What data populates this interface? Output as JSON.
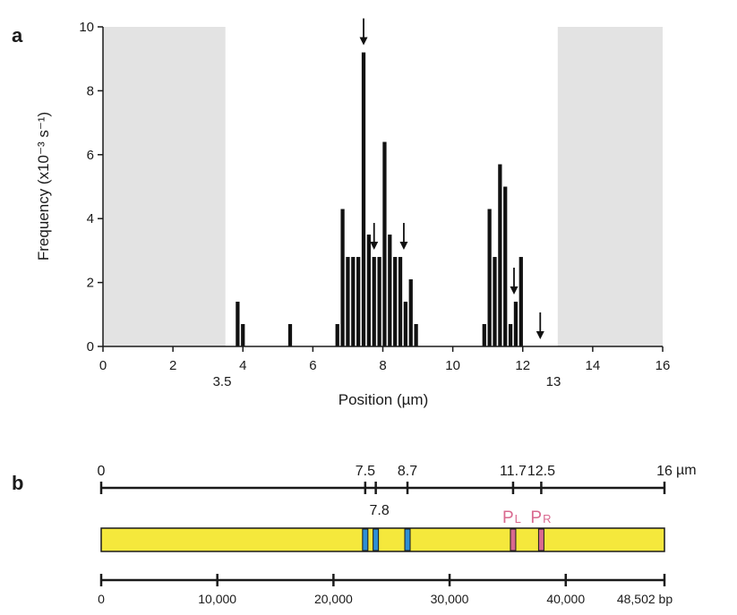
{
  "panel_a": {
    "letter": "a",
    "extra_x_labels": [
      "3.5",
      "13"
    ]
  },
  "panel_b": {
    "letter": "b",
    "um_positions": [
      0,
      7.5,
      7.8,
      8.7,
      11.7,
      12.5,
      16
    ],
    "um_labels": [
      "0",
      "7.5",
      "7.8",
      "8.7",
      "11.7",
      "12.5",
      "16"
    ],
    "um_unit": "µm",
    "bp_positions": [
      0,
      10000,
      20000,
      30000,
      40000,
      48502
    ],
    "bp_labels": [
      "0",
      "10,000",
      "20,000",
      "30,000",
      "40,000",
      "48,502 bp"
    ],
    "blue_marks_um": [
      7.5,
      7.8,
      8.7
    ],
    "pink_marks_um": [
      11.7,
      12.5
    ],
    "promoters": [
      {
        "main": "P",
        "sub": "L",
        "um": 11.7
      },
      {
        "main": "P",
        "sub": "R",
        "um": 12.5
      }
    ],
    "colors": {
      "dna": "#f5e83c",
      "blue": "#2f8fd4",
      "pink": "#d9698f"
    }
  },
  "chart_data": {
    "type": "bar",
    "xlabel": "Position (µm)",
    "ylabel": "Frequency (x10⁻³ s⁻¹)",
    "xlim": [
      0,
      16
    ],
    "ylim": [
      0,
      10
    ],
    "xticks": [
      0,
      2,
      4,
      6,
      8,
      10,
      12,
      14,
      16
    ],
    "yticks": [
      0,
      2,
      4,
      6,
      8,
      10
    ],
    "bin_width": 0.15,
    "x": [
      3.85,
      4.0,
      4.15,
      5.35,
      6.7,
      6.85,
      7.0,
      7.15,
      7.3,
      7.45,
      7.6,
      7.75,
      7.9,
      8.05,
      8.2,
      8.35,
      8.5,
      8.65,
      8.8,
      8.95,
      9.1,
      9.25,
      9.4,
      9.55,
      9.7,
      9.85,
      10.9,
      11.05,
      11.2,
      11.35,
      11.5,
      11.65,
      11.8,
      11.95,
      12.1,
      12.25,
      12.4,
      12.55
    ],
    "values": [
      1.4,
      0.7,
      0.0,
      0.7,
      0.7,
      4.3,
      2.8,
      2.8,
      2.8,
      9.2,
      3.5,
      2.8,
      2.8,
      6.4,
      3.5,
      2.8,
      2.8,
      1.4,
      2.1,
      0.7,
      0.0,
      0.0,
      0.0,
      0.0,
      0.0,
      0.0,
      0.7,
      4.3,
      2.8,
      5.7,
      5.0,
      0.7,
      1.4,
      2.8,
      0.0,
      0.0,
      0.0,
      0.0
    ],
    "shaded_regions": [
      [
        0,
        3.5
      ],
      [
        13,
        16
      ]
    ],
    "arrows_at": [
      7.45,
      7.75,
      8.6,
      11.75,
      12.5
    ]
  }
}
